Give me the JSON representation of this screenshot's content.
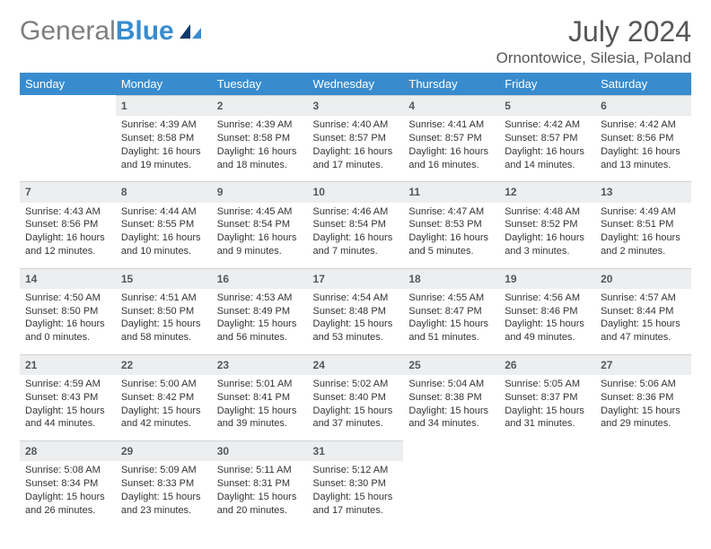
{
  "brand": {
    "partA": "General",
    "partB": "Blue"
  },
  "title": {
    "month": "July 2024",
    "location": "Ornontowice, Silesia, Poland"
  },
  "headers": [
    "Sunday",
    "Monday",
    "Tuesday",
    "Wednesday",
    "Thursday",
    "Friday",
    "Saturday"
  ],
  "colors": {
    "header_bg": "#388cce",
    "header_text": "#ffffff",
    "daynum_bg": "#eceeef",
    "daynum_border": "#cfd1d2",
    "text": "#333435",
    "title_text": "#555658"
  },
  "weeks": [
    [
      {
        "num": "",
        "sunrise": "",
        "sunset": "",
        "daylight": ""
      },
      {
        "num": "1",
        "sunrise": "4:39 AM",
        "sunset": "8:58 PM",
        "daylight": "16 hours and 19 minutes."
      },
      {
        "num": "2",
        "sunrise": "4:39 AM",
        "sunset": "8:58 PM",
        "daylight": "16 hours and 18 minutes."
      },
      {
        "num": "3",
        "sunrise": "4:40 AM",
        "sunset": "8:57 PM",
        "daylight": "16 hours and 17 minutes."
      },
      {
        "num": "4",
        "sunrise": "4:41 AM",
        "sunset": "8:57 PM",
        "daylight": "16 hours and 16 minutes."
      },
      {
        "num": "5",
        "sunrise": "4:42 AM",
        "sunset": "8:57 PM",
        "daylight": "16 hours and 14 minutes."
      },
      {
        "num": "6",
        "sunrise": "4:42 AM",
        "sunset": "8:56 PM",
        "daylight": "16 hours and 13 minutes."
      }
    ],
    [
      {
        "num": "7",
        "sunrise": "4:43 AM",
        "sunset": "8:56 PM",
        "daylight": "16 hours and 12 minutes."
      },
      {
        "num": "8",
        "sunrise": "4:44 AM",
        "sunset": "8:55 PM",
        "daylight": "16 hours and 10 minutes."
      },
      {
        "num": "9",
        "sunrise": "4:45 AM",
        "sunset": "8:54 PM",
        "daylight": "16 hours and 9 minutes."
      },
      {
        "num": "10",
        "sunrise": "4:46 AM",
        "sunset": "8:54 PM",
        "daylight": "16 hours and 7 minutes."
      },
      {
        "num": "11",
        "sunrise": "4:47 AM",
        "sunset": "8:53 PM",
        "daylight": "16 hours and 5 minutes."
      },
      {
        "num": "12",
        "sunrise": "4:48 AM",
        "sunset": "8:52 PM",
        "daylight": "16 hours and 3 minutes."
      },
      {
        "num": "13",
        "sunrise": "4:49 AM",
        "sunset": "8:51 PM",
        "daylight": "16 hours and 2 minutes."
      }
    ],
    [
      {
        "num": "14",
        "sunrise": "4:50 AM",
        "sunset": "8:50 PM",
        "daylight": "16 hours and 0 minutes."
      },
      {
        "num": "15",
        "sunrise": "4:51 AM",
        "sunset": "8:50 PM",
        "daylight": "15 hours and 58 minutes."
      },
      {
        "num": "16",
        "sunrise": "4:53 AM",
        "sunset": "8:49 PM",
        "daylight": "15 hours and 56 minutes."
      },
      {
        "num": "17",
        "sunrise": "4:54 AM",
        "sunset": "8:48 PM",
        "daylight": "15 hours and 53 minutes."
      },
      {
        "num": "18",
        "sunrise": "4:55 AM",
        "sunset": "8:47 PM",
        "daylight": "15 hours and 51 minutes."
      },
      {
        "num": "19",
        "sunrise": "4:56 AM",
        "sunset": "8:46 PM",
        "daylight": "15 hours and 49 minutes."
      },
      {
        "num": "20",
        "sunrise": "4:57 AM",
        "sunset": "8:44 PM",
        "daylight": "15 hours and 47 minutes."
      }
    ],
    [
      {
        "num": "21",
        "sunrise": "4:59 AM",
        "sunset": "8:43 PM",
        "daylight": "15 hours and 44 minutes."
      },
      {
        "num": "22",
        "sunrise": "5:00 AM",
        "sunset": "8:42 PM",
        "daylight": "15 hours and 42 minutes."
      },
      {
        "num": "23",
        "sunrise": "5:01 AM",
        "sunset": "8:41 PM",
        "daylight": "15 hours and 39 minutes."
      },
      {
        "num": "24",
        "sunrise": "5:02 AM",
        "sunset": "8:40 PM",
        "daylight": "15 hours and 37 minutes."
      },
      {
        "num": "25",
        "sunrise": "5:04 AM",
        "sunset": "8:38 PM",
        "daylight": "15 hours and 34 minutes."
      },
      {
        "num": "26",
        "sunrise": "5:05 AM",
        "sunset": "8:37 PM",
        "daylight": "15 hours and 31 minutes."
      },
      {
        "num": "27",
        "sunrise": "5:06 AM",
        "sunset": "8:36 PM",
        "daylight": "15 hours and 29 minutes."
      }
    ],
    [
      {
        "num": "28",
        "sunrise": "5:08 AM",
        "sunset": "8:34 PM",
        "daylight": "15 hours and 26 minutes."
      },
      {
        "num": "29",
        "sunrise": "5:09 AM",
        "sunset": "8:33 PM",
        "daylight": "15 hours and 23 minutes."
      },
      {
        "num": "30",
        "sunrise": "5:11 AM",
        "sunset": "8:31 PM",
        "daylight": "15 hours and 20 minutes."
      },
      {
        "num": "31",
        "sunrise": "5:12 AM",
        "sunset": "8:30 PM",
        "daylight": "15 hours and 17 minutes."
      },
      {
        "num": "",
        "sunrise": "",
        "sunset": "",
        "daylight": ""
      },
      {
        "num": "",
        "sunrise": "",
        "sunset": "",
        "daylight": ""
      },
      {
        "num": "",
        "sunrise": "",
        "sunset": "",
        "daylight": ""
      }
    ]
  ],
  "labels": {
    "sunrise": "Sunrise: ",
    "sunset": "Sunset: ",
    "daylight": "Daylight: "
  }
}
